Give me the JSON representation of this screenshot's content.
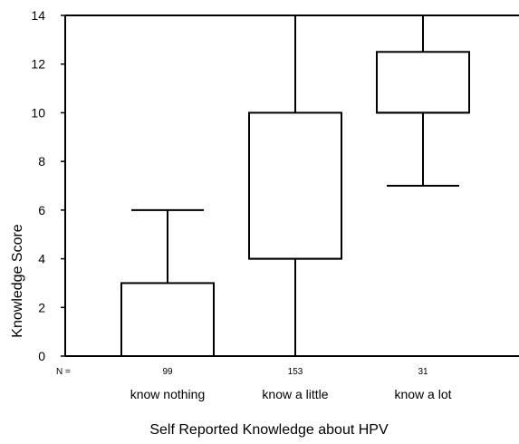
{
  "chart_data": {
    "type": "boxplot",
    "xlabel": "Self Reported Knowledge about HPV",
    "ylabel": "Knowledge Score",
    "ylim": [
      0,
      14
    ],
    "yticks": [
      0,
      2,
      4,
      6,
      8,
      10,
      12,
      14
    ],
    "n_prefix": "N =",
    "categories": [
      "know nothing",
      "know a little",
      "know a lot"
    ],
    "n": [
      "99",
      "153",
      "31"
    ],
    "boxes": [
      {
        "min": 0,
        "q1": 0,
        "median": 0,
        "q3": 3,
        "max": 6
      },
      {
        "min": 0,
        "q1": 4,
        "median": 4,
        "q3": 10,
        "max": 14
      },
      {
        "min": 7,
        "q1": 10,
        "median": 10,
        "q3": 12.5,
        "max": 14
      }
    ],
    "grid": false,
    "colors": {
      "stroke": "#000000",
      "fill": "#ffffff"
    }
  }
}
